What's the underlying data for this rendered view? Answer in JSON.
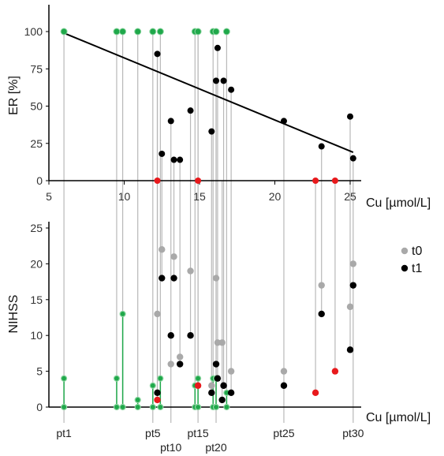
{
  "colors": {
    "green": "#1fa84a",
    "black": "#000000",
    "red": "#e8191c",
    "grey": "#a9a9a9",
    "line": "#b8b8b8",
    "regression": "#000000"
  },
  "chart_data": [
    {
      "id": "er",
      "type": "scatter",
      "ylabel": "ER [%]",
      "xlabel": "Cu [µmol/L]",
      "xlim": [
        5,
        26
      ],
      "ylim": [
        0,
        120
      ],
      "x_ticks": [
        5,
        10,
        15,
        20,
        25
      ],
      "y_ticks": [
        0,
        25,
        50,
        75,
        100
      ],
      "regression": {
        "x": [
          6,
          25.2
        ],
        "y": [
          99,
          19
        ]
      },
      "points": [
        {
          "x": 6,
          "y": 100,
          "c": "green"
        },
        {
          "x": 9.5,
          "y": 100,
          "c": "green"
        },
        {
          "x": 9.9,
          "y": 100,
          "c": "green"
        },
        {
          "x": 10.9,
          "y": 100,
          "c": "green"
        },
        {
          "x": 11.9,
          "y": 100,
          "c": "green"
        },
        {
          "x": 12.4,
          "y": 100,
          "c": "green"
        },
        {
          "x": 14.7,
          "y": 100,
          "c": "green"
        },
        {
          "x": 14.9,
          "y": 100,
          "c": "green"
        },
        {
          "x": 15.9,
          "y": 100,
          "c": "green"
        },
        {
          "x": 16.1,
          "y": 100,
          "c": "green"
        },
        {
          "x": 16.8,
          "y": 100,
          "c": "green"
        },
        {
          "x": 12.2,
          "y": 85,
          "c": "black"
        },
        {
          "x": 16.2,
          "y": 89,
          "c": "black"
        },
        {
          "x": 16.1,
          "y": 67,
          "c": "black"
        },
        {
          "x": 16.6,
          "y": 67,
          "c": "black"
        },
        {
          "x": 17.1,
          "y": 61,
          "c": "black"
        },
        {
          "x": 14.4,
          "y": 47,
          "c": "black"
        },
        {
          "x": 13.1,
          "y": 40,
          "c": "black"
        },
        {
          "x": 15.8,
          "y": 33,
          "c": "black"
        },
        {
          "x": 12.5,
          "y": 18,
          "c": "black"
        },
        {
          "x": 13.3,
          "y": 14,
          "c": "black"
        },
        {
          "x": 13.7,
          "y": 14,
          "c": "black"
        },
        {
          "x": 20.6,
          "y": 40,
          "c": "black"
        },
        {
          "x": 23.1,
          "y": 23,
          "c": "black"
        },
        {
          "x": 25.0,
          "y": 43,
          "c": "black"
        },
        {
          "x": 25.2,
          "y": 15,
          "c": "black"
        },
        {
          "x": 12.2,
          "y": 0,
          "c": "red"
        },
        {
          "x": 14.9,
          "y": 0,
          "c": "red"
        },
        {
          "x": 22.7,
          "y": 0,
          "c": "red"
        },
        {
          "x": 24.0,
          "y": 0,
          "c": "red"
        }
      ]
    },
    {
      "id": "nihss",
      "type": "scatter",
      "ylabel": "NIHSS",
      "xlabel": "Cu [µmol/L]",
      "ylim": [
        0,
        27
      ],
      "y_ticks": [
        0,
        5,
        10,
        15,
        20,
        25
      ],
      "legend": [
        {
          "label": "t0",
          "c": "grey"
        },
        {
          "label": "t1",
          "c": "black"
        }
      ],
      "patients": [
        {
          "x": 6,
          "label": "pt1",
          "t0": 4,
          "t1": 0,
          "c": "green"
        },
        {
          "x": 9.5,
          "label": "",
          "t0": 4,
          "t1": 0,
          "c": "green"
        },
        {
          "x": 9.9,
          "label": "",
          "t0": 13,
          "t1": 0,
          "c": "green"
        },
        {
          "x": 10.9,
          "label": "",
          "t0": 1,
          "t1": 0,
          "c": "green"
        },
        {
          "x": 11.9,
          "label": "pt5",
          "t0": 3,
          "t1": 0,
          "c": "green"
        },
        {
          "x": 12.2,
          "label": "",
          "t0": 13,
          "t1": 2,
          "c": "black"
        },
        {
          "x": 12.2,
          "label": "",
          "t0": 1,
          "t1": 1,
          "c": "red"
        },
        {
          "x": 12.4,
          "label": "",
          "t0": 4,
          "t1": 0,
          "c": "green"
        },
        {
          "x": 12.5,
          "label": "",
          "t0": 22,
          "t1": 18,
          "c": "black"
        },
        {
          "x": 13.1,
          "label": "pt10",
          "t0": 6,
          "t1": 10,
          "c": "black"
        },
        {
          "x": 13.3,
          "label": "",
          "t0": 21,
          "t1": 18,
          "c": "black"
        },
        {
          "x": 13.7,
          "label": "",
          "t0": 7,
          "t1": 6,
          "c": "black"
        },
        {
          "x": 14.4,
          "label": "",
          "t0": 19,
          "t1": 10,
          "c": "black"
        },
        {
          "x": 14.7,
          "label": "",
          "t0": 3,
          "t1": 0,
          "c": "green"
        },
        {
          "x": 14.9,
          "label": "pt15",
          "t0": 4,
          "t1": 0,
          "c": "green"
        },
        {
          "x": 14.9,
          "label": "",
          "t0": 3,
          "t1": 3,
          "c": "red"
        },
        {
          "x": 15.8,
          "label": "",
          "t0": 3,
          "t1": 2,
          "c": "black"
        },
        {
          "x": 15.9,
          "label": "",
          "t0": 4,
          "t1": 0,
          "c": "green"
        },
        {
          "x": 16.1,
          "label": "pt20",
          "t0": 18,
          "t1": 6,
          "c": "black"
        },
        {
          "x": 16.1,
          "label": "",
          "t0": 4,
          "t1": 0,
          "c": "green"
        },
        {
          "x": 16.2,
          "label": "",
          "t0": 9,
          "t1": 4,
          "c": "black"
        },
        {
          "x": 16.5,
          "label": "",
          "t0": 9,
          "t1": 1,
          "c": "black"
        },
        {
          "x": 16.6,
          "label": "",
          "t0": 3,
          "t1": 3,
          "c": "black"
        },
        {
          "x": 16.8,
          "label": "",
          "t0": 2,
          "t1": 0,
          "c": "green"
        },
        {
          "x": 17.1,
          "label": "",
          "t0": 5,
          "t1": 2,
          "c": "black"
        },
        {
          "x": 20.6,
          "label": "pt25",
          "t0": 5,
          "t1": 3,
          "c": "black"
        },
        {
          "x": 22.7,
          "label": "",
          "t0": 2,
          "t1": 2,
          "c": "red"
        },
        {
          "x": 23.1,
          "label": "",
          "t0": 17,
          "t1": 13,
          "c": "black"
        },
        {
          "x": 24.0,
          "label": "",
          "t0": 5,
          "t1": 5,
          "c": "red"
        },
        {
          "x": 25.0,
          "label": "",
          "t0": 14,
          "t1": 8,
          "c": "black"
        },
        {
          "x": 25.2,
          "label": "pt30",
          "t0": 20,
          "t1": 17,
          "c": "black"
        }
      ]
    }
  ]
}
